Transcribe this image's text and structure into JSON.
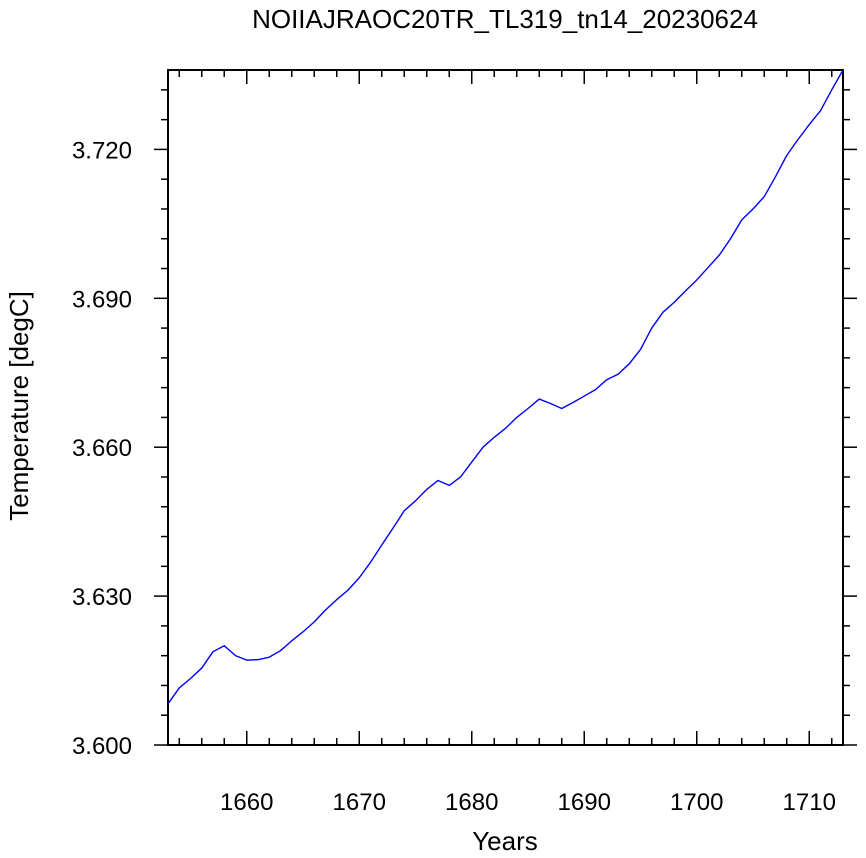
{
  "chart_data": {
    "type": "line",
    "title": "NOIIAJRAOC20TR_TL319_tn14_20230624",
    "xlabel": "Years",
    "ylabel": "Temperature [degC]",
    "xlim": [
      1653,
      1713
    ],
    "ylim": [
      3.6,
      3.736
    ],
    "x_ticks": [
      1660,
      1670,
      1680,
      1690,
      1700,
      1710
    ],
    "x_tick_labels": [
      "1660",
      "1670",
      "1680",
      "1690",
      "1700",
      "1710"
    ],
    "y_ticks": [
      3.6,
      3.63,
      3.66,
      3.69,
      3.72
    ],
    "y_tick_labels": [
      "3.600",
      "3.630",
      "3.660",
      "3.690",
      "3.720"
    ],
    "grid": false,
    "series": [
      {
        "color": "#0000ff",
        "x": [
          1653,
          1654,
          1655,
          1656,
          1657,
          1658,
          1659,
          1660,
          1661,
          1662,
          1663,
          1664,
          1665,
          1666,
          1667,
          1668,
          1669,
          1670,
          1671,
          1672,
          1673,
          1674,
          1675,
          1676,
          1677,
          1678,
          1679,
          1680,
          1681,
          1682,
          1683,
          1684,
          1685,
          1686,
          1687,
          1688,
          1689,
          1690,
          1691,
          1692,
          1693,
          1694,
          1695,
          1696,
          1697,
          1698,
          1699,
          1700,
          1701,
          1702,
          1703,
          1704,
          1705,
          1706,
          1707,
          1708,
          1709,
          1710,
          1711,
          1712,
          1713
        ],
        "y": [
          3.6083,
          3.6115,
          3.6134,
          3.6155,
          3.6188,
          3.62,
          3.618,
          3.6171,
          3.6172,
          3.6177,
          3.619,
          3.621,
          3.6228,
          3.6248,
          3.6272,
          3.6293,
          3.6312,
          3.6337,
          3.6368,
          3.6403,
          3.6437,
          3.6472,
          3.6492,
          3.6515,
          3.6533,
          3.6523,
          3.654,
          3.657,
          3.66,
          3.662,
          3.6638,
          3.666,
          3.6678,
          3.6697,
          3.6688,
          3.6678,
          3.669,
          3.6703,
          3.6716,
          3.6736,
          3.6747,
          3.6768,
          3.6797,
          3.684,
          3.6872,
          3.6892,
          3.6915,
          3.6937,
          3.6962,
          3.6987,
          3.702,
          3.7058,
          3.708,
          3.7105,
          3.7145,
          3.7188,
          3.722,
          3.725,
          3.7278,
          3.732,
          3.736
        ]
      }
    ]
  }
}
